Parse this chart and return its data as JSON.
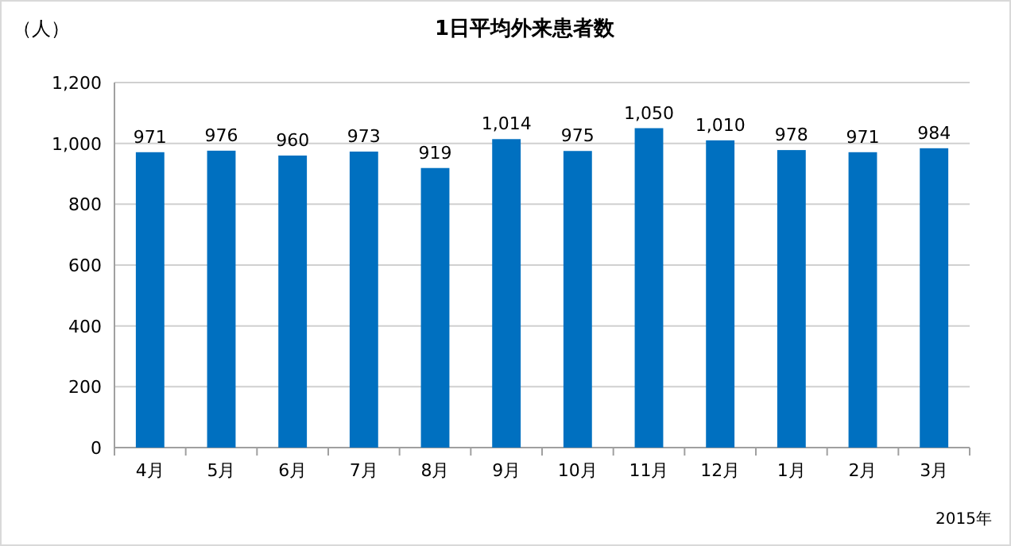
{
  "chart_data": {
    "type": "bar",
    "title": "1日平均外来患者数",
    "ylabel": "（人）",
    "annotations": [
      "2015年"
    ],
    "categories": [
      "4月",
      "5月",
      "6月",
      "7月",
      "8月",
      "9月",
      "10月",
      "11月",
      "12月",
      "1月",
      "2月",
      "3月"
    ],
    "values": [
      971,
      976,
      960,
      973,
      919,
      1014,
      975,
      1050,
      1010,
      978,
      971,
      984
    ],
    "value_labels": [
      "971",
      "976",
      "960",
      "973",
      "919",
      "1,014",
      "975",
      "1,050",
      "1,010",
      "978",
      "971",
      "984"
    ],
    "color": "#0070c0",
    "ylim": [
      0,
      1200
    ],
    "yticks": [
      0,
      200,
      400,
      600,
      800,
      {
        "value": 1000,
        "label": "1,000"
      },
      {
        "value": 1200,
        "label": "1,200"
      }
    ],
    "grid": "y"
  }
}
